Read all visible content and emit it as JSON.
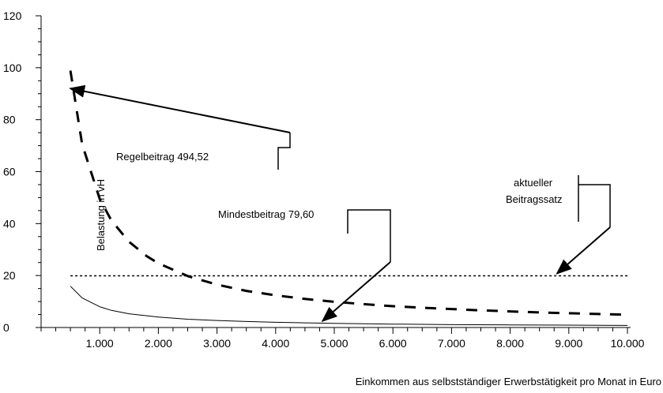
{
  "chart_data": {
    "type": "line",
    "title": "",
    "xlabel": "Einkommen aus selbstständiger Erwerbstätigkeit pro Monat in Euro",
    "ylabel": "Belastung in vH",
    "xlim": [
      0,
      10000
    ],
    "ylim": [
      0,
      120
    ],
    "x_ticks": [
      1000,
      2000,
      3000,
      4000,
      5000,
      6000,
      7000,
      8000,
      9000,
      10000
    ],
    "x_tick_labels": [
      "1.000",
      "2.000",
      "3.000",
      "4.000",
      "5.000",
      "6.000",
      "7.000",
      "8.000",
      "9.000",
      "10.000"
    ],
    "y_ticks": [
      0,
      20,
      40,
      60,
      80,
      100,
      120
    ],
    "y_tick_labels": [
      "0",
      "20",
      "40",
      "60",
      "80",
      "100",
      "120"
    ],
    "grid": false,
    "series": [
      {
        "key": "regelbeitrag",
        "style": "dashed-heavy",
        "x": [
          500,
          700,
          1000,
          1200,
          1500,
          1800,
          2000,
          2500,
          3000,
          3500,
          4000,
          4500,
          5000,
          5500,
          6000,
          6500,
          7000,
          7500,
          8000,
          8500,
          9000,
          9500,
          10000
        ],
        "values": [
          98.9,
          70.6,
          49.5,
          41.2,
          33.0,
          27.5,
          24.7,
          19.8,
          16.5,
          14.1,
          12.4,
          11.0,
          9.9,
          9.0,
          8.2,
          7.6,
          7.1,
          6.6,
          6.2,
          5.8,
          5.5,
          5.2,
          4.9
        ]
      },
      {
        "key": "mindestbeitrag",
        "style": "solid-thin",
        "x": [
          500,
          700,
          1000,
          1200,
          1500,
          2000,
          2500,
          3000,
          3500,
          4000,
          5000,
          6000,
          7000,
          8000,
          9000,
          10000
        ],
        "values": [
          15.9,
          11.4,
          8.0,
          6.6,
          5.3,
          4.0,
          3.2,
          2.7,
          2.3,
          2.0,
          1.6,
          1.3,
          1.1,
          1.0,
          0.9,
          0.8
        ]
      },
      {
        "key": "beitragssatz",
        "style": "dotted",
        "x": [
          500,
          10000
        ],
        "values": [
          19.9,
          19.9
        ]
      }
    ],
    "annotations": [
      {
        "key": "regel",
        "text": "Regelbeitrag 494,52",
        "target": [
          500,
          92
        ]
      },
      {
        "key": "mindest",
        "text": "Mindestbeitrag 79,60",
        "target": [
          4800,
          2.5
        ]
      },
      {
        "key": "satz",
        "lines": [
          "aktueller",
          "Beitragssatz"
        ],
        "target": [
          8800,
          20.8
        ]
      }
    ]
  }
}
